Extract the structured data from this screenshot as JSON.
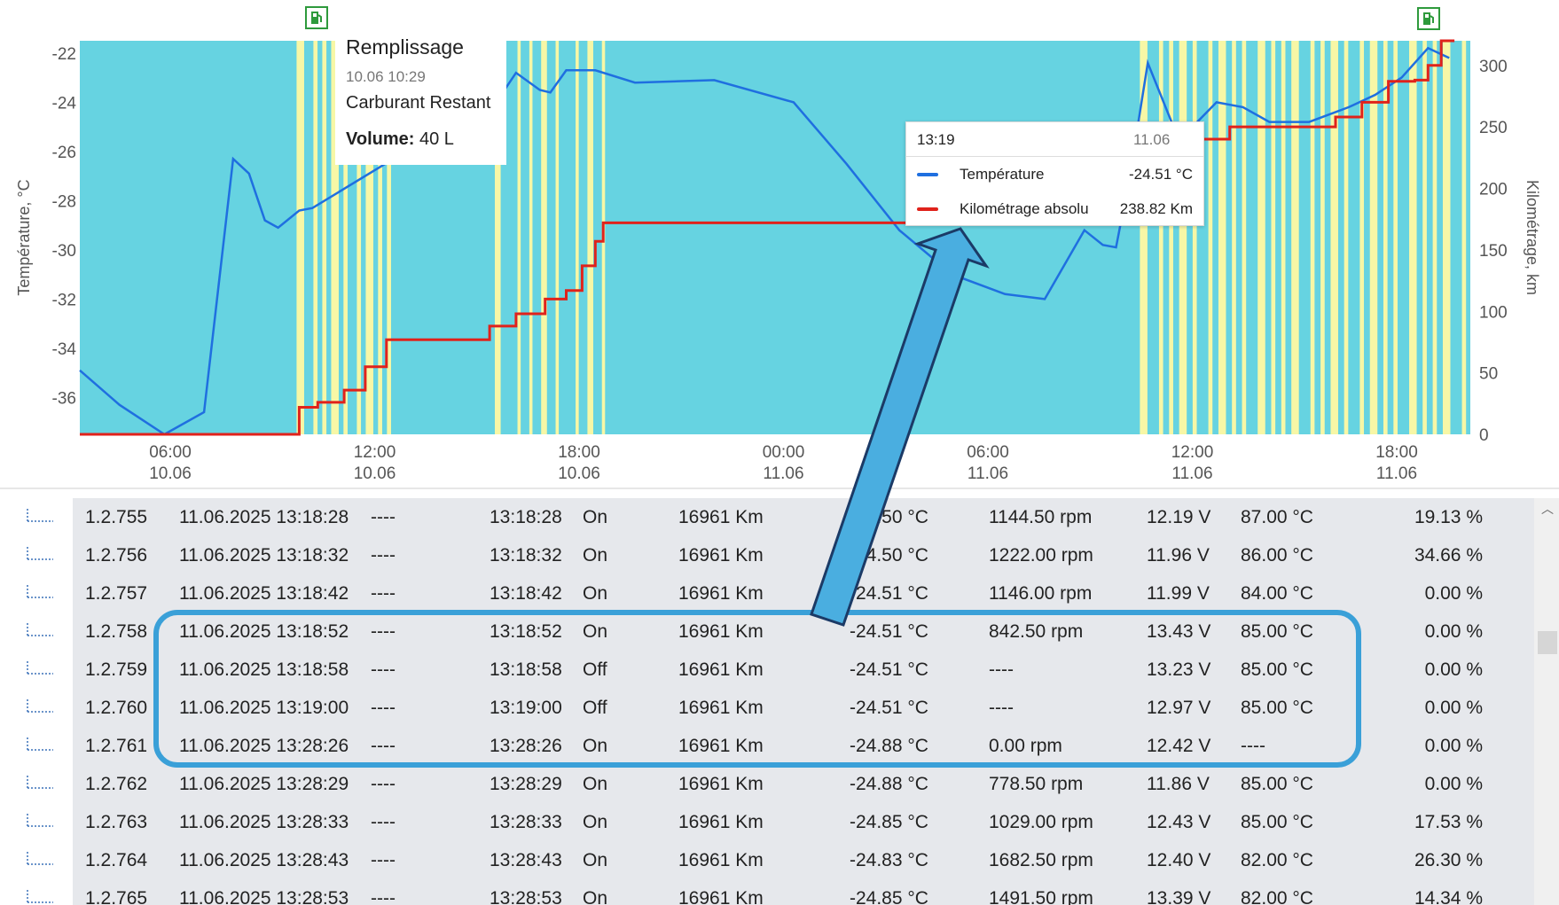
{
  "chart": {
    "y_left_label": "Température, °C",
    "y_right_label": "Kilométrage, km",
    "y_left_ticks": [
      "-22",
      "-24",
      "-26",
      "-28",
      "-30",
      "-32",
      "-34",
      "-36"
    ],
    "y_right_ticks": [
      "300",
      "250",
      "200",
      "150",
      "100",
      "50",
      "0"
    ],
    "x_ticks": [
      {
        "time": "06:00",
        "date": "10.06"
      },
      {
        "time": "12:00",
        "date": "10.06"
      },
      {
        "time": "18:00",
        "date": "10.06"
      },
      {
        "time": "00:00",
        "date": "11.06"
      },
      {
        "time": "06:00",
        "date": "11.06"
      },
      {
        "time": "12:00",
        "date": "11.06"
      },
      {
        "time": "18:00",
        "date": "11.06"
      }
    ],
    "colors": {
      "background": "#66d3e1",
      "stripes": "#f7f7a6",
      "temperature": "#1f6fe0",
      "mileage": "#e0221b"
    }
  },
  "chart_data": {
    "type": "line",
    "x_unit": "hours since 10.06 03:30 (approx)",
    "series": [
      {
        "name": "Température",
        "axis": "left",
        "points": [
          [
            0,
            -34.9
          ],
          [
            1.5,
            -36.3
          ],
          [
            3.2,
            -37.5
          ],
          [
            4.7,
            -36.6
          ],
          [
            5.8,
            -26.3
          ],
          [
            6.4,
            -26.9
          ],
          [
            7.0,
            -28.8
          ],
          [
            7.5,
            -29.1
          ],
          [
            8.3,
            -28.4
          ],
          [
            8.8,
            -28.3
          ],
          [
            16.0,
            -23.6
          ],
          [
            16.5,
            -22.8
          ],
          [
            17.4,
            -23.5
          ],
          [
            17.8,
            -23.6
          ],
          [
            18.4,
            -22.7
          ],
          [
            19.5,
            -22.7
          ],
          [
            21.0,
            -23.2
          ],
          [
            24.0,
            -23.1
          ],
          [
            27.0,
            -24.0
          ],
          [
            29.0,
            -26.5
          ],
          [
            31.0,
            -29.2
          ],
          [
            33.0,
            -31.0
          ],
          [
            35.0,
            -31.8
          ],
          [
            36.5,
            -32.0
          ],
          [
            38.0,
            -29.2
          ],
          [
            38.7,
            -29.8
          ],
          [
            39.2,
            -29.9
          ],
          [
            39.7,
            -27.1
          ],
          [
            40.4,
            -22.4
          ],
          [
            41.3,
            -24.8
          ],
          [
            42.0,
            -25.1
          ],
          [
            43.0,
            -24.0
          ],
          [
            44.0,
            -24.2
          ],
          [
            45.0,
            -24.8
          ],
          [
            46.5,
            -24.8
          ],
          [
            48.0,
            -24.2
          ],
          [
            49.0,
            -23.7
          ],
          [
            50.0,
            -23.0
          ],
          [
            51.0,
            -21.8
          ],
          [
            51.8,
            -22.2
          ]
        ]
      },
      {
        "name": "Kilométrage absolu",
        "axis": "right",
        "points": [
          [
            0,
            0
          ],
          [
            8.0,
            0
          ],
          [
            8.3,
            22
          ],
          [
            9.0,
            26
          ],
          [
            10.0,
            36
          ],
          [
            10.8,
            55
          ],
          [
            11.6,
            77
          ],
          [
            13.5,
            77
          ],
          [
            15.5,
            88
          ],
          [
            16.5,
            98
          ],
          [
            17.6,
            110
          ],
          [
            18.4,
            117
          ],
          [
            19.0,
            137
          ],
          [
            19.5,
            157
          ],
          [
            19.8,
            172
          ],
          [
            24.0,
            172
          ],
          [
            30.0,
            172
          ],
          [
            36.0,
            172
          ],
          [
            38.5,
            198
          ],
          [
            40.0,
            215
          ],
          [
            40.8,
            230
          ],
          [
            42.0,
            240
          ],
          [
            42.5,
            240
          ],
          [
            43.5,
            250
          ],
          [
            46.0,
            250
          ],
          [
            47.5,
            258
          ],
          [
            48.5,
            270
          ],
          [
            49.5,
            287
          ],
          [
            50.5,
            288
          ],
          [
            51.0,
            300
          ],
          [
            51.5,
            320
          ],
          [
            52.0,
            320
          ]
        ]
      }
    ],
    "y_left_range": [
      -37.5,
      -21.5
    ],
    "y_right_range": [
      0,
      320
    ]
  },
  "fuel_tooltip": {
    "title": "Remplissage",
    "date": "10.06 10:29",
    "subtitle": "Carburant Restant",
    "volume_label": "Volume:",
    "volume_value": "40 L"
  },
  "hover_tooltip": {
    "time": "13:19",
    "date": "11.06",
    "rows": [
      {
        "label": "Température",
        "value": "-24.51 °C",
        "color": "#1f6fe0"
      },
      {
        "label": "Kilométrage absolu",
        "value": "238.82 Km",
        "color": "#e0221b"
      }
    ]
  },
  "table": {
    "rows": [
      [
        "1.2.755",
        "11.06.2025 13:18:28",
        "----",
        "13:18:28",
        "On",
        "16961 Km",
        "-24.50 °C",
        "1144.50 rpm",
        "12.19 V",
        "87.00 °C",
        "19.13 %"
      ],
      [
        "1.2.756",
        "11.06.2025 13:18:32",
        "----",
        "13:18:32",
        "On",
        "16961 Km",
        "-24.50 °C",
        "1222.00 rpm",
        "11.96 V",
        "86.00 °C",
        "34.66 %"
      ],
      [
        "1.2.757",
        "11.06.2025 13:18:42",
        "----",
        "13:18:42",
        "On",
        "16961 Km",
        "-24.51 °C",
        "1146.00 rpm",
        "11.99 V",
        "84.00 °C",
        "0.00 %"
      ],
      [
        "1.2.758",
        "11.06.2025 13:18:52",
        "----",
        "13:18:52",
        "On",
        "16961 Km",
        "-24.51 °C",
        "842.50 rpm",
        "13.43 V",
        "85.00 °C",
        "0.00 %"
      ],
      [
        "1.2.759",
        "11.06.2025 13:18:58",
        "----",
        "13:18:58",
        "Off",
        "16961 Km",
        "-24.51 °C",
        "----",
        "13.23 V",
        "85.00 °C",
        "0.00 %"
      ],
      [
        "1.2.760",
        "11.06.2025 13:19:00",
        "----",
        "13:19:00",
        "Off",
        "16961 Km",
        "-24.51 °C",
        "----",
        "12.97 V",
        "85.00 °C",
        "0.00 %"
      ],
      [
        "1.2.761",
        "11.06.2025 13:28:26",
        "----",
        "13:28:26",
        "On",
        "16961 Km",
        "-24.88 °C",
        "0.00 rpm",
        "12.42 V",
        "----",
        "0.00 %"
      ],
      [
        "1.2.762",
        "11.06.2025 13:28:29",
        "----",
        "13:28:29",
        "On",
        "16961 Km",
        "-24.88 °C",
        "778.50 rpm",
        "11.86 V",
        "85.00 °C",
        "0.00 %"
      ],
      [
        "1.2.763",
        "11.06.2025 13:28:33",
        "----",
        "13:28:33",
        "On",
        "16961 Km",
        "-24.85 °C",
        "1029.00 rpm",
        "12.43 V",
        "85.00 °C",
        "17.53 %"
      ],
      [
        "1.2.764",
        "11.06.2025 13:28:43",
        "----",
        "13:28:43",
        "On",
        "16961 Km",
        "-24.83 °C",
        "1682.50 rpm",
        "12.40 V",
        "82.00 °C",
        "26.30 %"
      ],
      [
        "1.2.765",
        "11.06.2025 13:28:53",
        "----",
        "13:28:53",
        "On",
        "16961 Km",
        "-24.85 °C",
        "1491.50 rpm",
        "13.39 V",
        "82.00 °C",
        "14.34 %"
      ]
    ],
    "highlight_rows": [
      3,
      6
    ],
    "highlight_color": "#3aa0d8",
    "arrow_color": "#4aaee0"
  }
}
